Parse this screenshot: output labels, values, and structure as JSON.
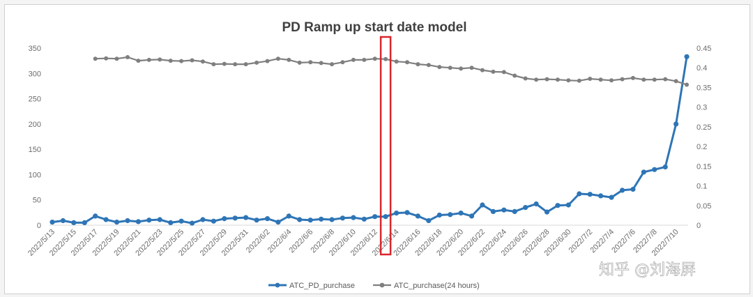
{
  "chart_data": {
    "type": "line",
    "title": "PD Ramp up start date model",
    "xlabel": "",
    "ylabel": "",
    "x": [
      "2022/5/13",
      "2022/5/14",
      "2022/5/15",
      "2022/5/16",
      "2022/5/17",
      "2022/5/18",
      "2022/5/19",
      "2022/5/20",
      "2022/5/21",
      "2022/5/22",
      "2022/5/23",
      "2022/5/24",
      "2022/5/25",
      "2022/5/26",
      "2022/5/27",
      "2022/5/28",
      "2022/5/29",
      "2022/5/30",
      "2022/5/31",
      "2022/6/1",
      "2022/6/2",
      "2022/6/3",
      "2022/6/4",
      "2022/6/5",
      "2022/6/6",
      "2022/6/7",
      "2022/6/8",
      "2022/6/9",
      "2022/6/10",
      "2022/6/11",
      "2022/6/12",
      "2022/6/13",
      "2022/6/14",
      "2022/6/15",
      "2022/6/16",
      "2022/6/17",
      "2022/6/18",
      "2022/6/19",
      "2022/6/20",
      "2022/6/21",
      "2022/6/22",
      "2022/6/23",
      "2022/6/24",
      "2022/6/25",
      "2022/6/26",
      "2022/6/27",
      "2022/6/28",
      "2022/6/29",
      "2022/6/30",
      "2022/7/1",
      "2022/7/2",
      "2022/7/3",
      "2022/7/4",
      "2022/7/5",
      "2022/7/6",
      "2022/7/7",
      "2022/7/8",
      "2022/7/9",
      "2022/7/10",
      "2022/7/11"
    ],
    "x_tick_labels": [
      "2022/5/13",
      "2022/5/15",
      "2022/5/17",
      "2022/5/19",
      "2022/5/21",
      "2022/5/23",
      "2022/5/25",
      "2022/5/27",
      "2022/5/29",
      "2022/5/31",
      "2022/6/2",
      "2022/6/4",
      "2022/6/6",
      "2022/6/8",
      "2022/6/10",
      "2022/6/12",
      "2022/6/14",
      "2022/6/16",
      "2022/6/18",
      "2022/6/20",
      "2022/6/22",
      "2022/6/24",
      "2022/6/26",
      "2022/6/28",
      "2022/6/30",
      "2022/7/2",
      "2022/7/4",
      "2022/7/6",
      "2022/7/8",
      "2022/7/10"
    ],
    "y_left_ticks": [
      "0",
      "50",
      "100",
      "150",
      "200",
      "250",
      "300",
      "350"
    ],
    "y_right_ticks": [
      "0",
      "0.05",
      "0.1",
      "0.15",
      "0.2",
      "0.25",
      "0.3",
      "0.35",
      "0.4",
      "0.45"
    ],
    "ylim_left": [
      0,
      350
    ],
    "ylim_right": [
      0,
      0.45
    ],
    "grid": false,
    "legend_position": "bottom",
    "series": [
      {
        "name": "ATC_PD_purchase",
        "axis": "left",
        "color": "#2e75b6",
        "values": [
          6,
          9,
          5,
          5,
          18,
          11,
          6,
          9,
          7,
          10,
          11,
          5,
          8,
          4,
          11,
          8,
          13,
          14,
          15,
          10,
          13,
          6,
          18,
          11,
          10,
          12,
          11,
          14,
          15,
          12,
          17,
          17,
          24,
          25,
          18,
          9,
          20,
          21,
          24,
          18,
          40,
          27,
          30,
          27,
          35,
          42,
          26,
          39,
          40,
          62,
          61,
          58,
          55,
          69,
          71,
          105,
          110,
          115,
          200,
          333
        ],
        "marker": "circle"
      },
      {
        "name": "ATC_purchase(24 hours)",
        "axis": "right",
        "color": "#7f7f7f",
        "values": [
          null,
          null,
          null,
          null,
          0.423,
          0.424,
          0.423,
          0.427,
          0.418,
          0.42,
          0.421,
          0.418,
          0.417,
          0.419,
          0.416,
          0.409,
          0.41,
          0.409,
          0.409,
          0.413,
          0.417,
          0.423,
          0.42,
          0.413,
          0.414,
          0.412,
          0.409,
          0.414,
          0.42,
          0.42,
          0.423,
          0.422,
          0.416,
          0.414,
          0.409,
          0.407,
          0.402,
          0.4,
          0.398,
          0.4,
          0.394,
          0.39,
          0.389,
          0.38,
          0.373,
          0.37,
          0.371,
          0.37,
          0.368,
          0.367,
          0.372,
          0.37,
          0.368,
          0.371,
          0.374,
          0.37,
          0.37,
          0.371,
          0.366,
          0.357
        ],
        "marker": "circle"
      }
    ],
    "highlight": {
      "x": "2022/6/13",
      "color": "#d9262b"
    }
  },
  "watermark": "知乎 @刘海屏"
}
